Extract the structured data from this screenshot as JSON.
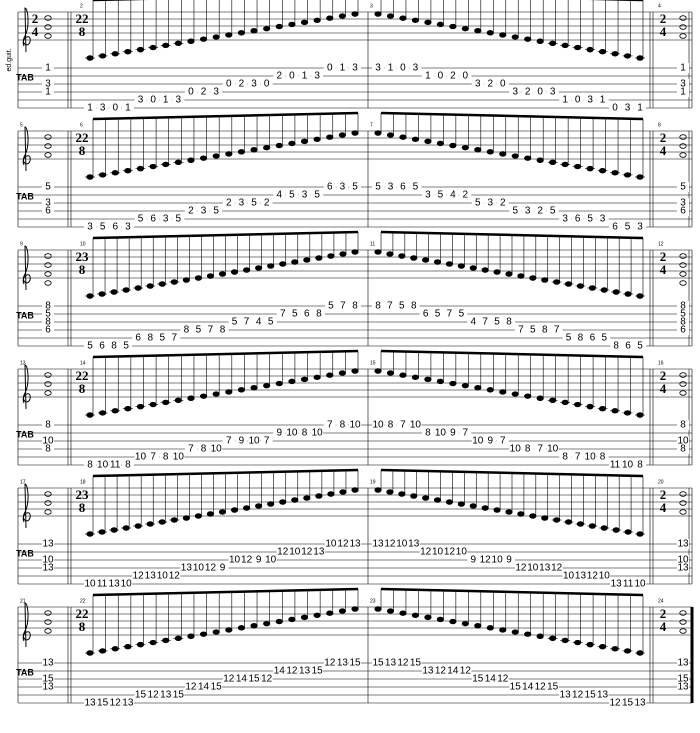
{
  "instrument": "ed.guit.",
  "tab_label": "TAB",
  "systems": [
    {
      "measures": [
        {
          "time": [
            2,
            4
          ],
          "frets": [
            1,
            3,
            1
          ]
        },
        {
          "number": 2,
          "time": [
            22,
            8
          ],
          "frets": [
            1,
            3,
            0,
            1,
            3,
            0,
            1,
            3,
            0,
            2,
            3,
            0,
            2,
            3,
            0,
            2,
            0,
            1,
            3,
            0,
            1,
            3
          ]
        },
        {
          "number": 3,
          "frets": [
            3,
            1,
            0,
            3,
            1,
            0,
            2,
            0,
            3,
            2,
            0,
            3,
            2,
            0,
            3,
            1,
            0,
            3,
            1,
            0,
            3,
            1
          ]
        },
        {
          "number": 4,
          "time": [
            2,
            4
          ],
          "frets": [
            1,
            3,
            1
          ]
        }
      ]
    },
    {
      "measures": [
        {
          "number": 5,
          "frets": [
            5,
            3,
            6
          ]
        },
        {
          "number": 6,
          "time": [
            22,
            8
          ],
          "frets": [
            3,
            5,
            6,
            3,
            5,
            6,
            3,
            5,
            2,
            3,
            5,
            2,
            3,
            5,
            2,
            4,
            5,
            3,
            5,
            6,
            3,
            5
          ]
        },
        {
          "number": 7,
          "frets": [
            5,
            3,
            6,
            5,
            3,
            5,
            4,
            2,
            5,
            3,
            2,
            5,
            3,
            2,
            5,
            3,
            6,
            5,
            3,
            6,
            5,
            3
          ]
        },
        {
          "number": 8,
          "time": [
            2,
            4
          ],
          "frets": [
            5,
            3,
            6
          ]
        }
      ]
    },
    {
      "measures": [
        {
          "number": 9,
          "frets": [
            8,
            5,
            8,
            6
          ]
        },
        {
          "number": 10,
          "time": [
            23,
            8
          ],
          "frets": [
            5,
            6,
            8,
            5,
            6,
            8,
            5,
            7,
            8,
            5,
            7,
            8,
            5,
            7,
            4,
            5,
            7,
            5,
            6,
            8,
            5,
            7,
            8
          ]
        },
        {
          "number": 11,
          "frets": [
            8,
            7,
            5,
            8,
            6,
            5,
            7,
            5,
            4,
            7,
            5,
            8,
            7,
            5,
            8,
            7,
            5,
            8,
            6,
            5,
            8,
            6,
            5
          ]
        },
        {
          "number": 12,
          "time": [
            2,
            4
          ],
          "frets": [
            8,
            5,
            8,
            6
          ]
        }
      ]
    },
    {
      "measures": [
        {
          "number": 13,
          "frets": [
            8,
            10,
            8
          ]
        },
        {
          "number": 14,
          "time": [
            22,
            8
          ],
          "frets": [
            8,
            10,
            11,
            8,
            10,
            7,
            8,
            10,
            7,
            8,
            10,
            7,
            9,
            10,
            7,
            9,
            10,
            8,
            10,
            7,
            8,
            10
          ]
        },
        {
          "number": 15,
          "frets": [
            10,
            8,
            7,
            10,
            8,
            10,
            9,
            7,
            10,
            9,
            7,
            10,
            8,
            7,
            10,
            8,
            7,
            10,
            8,
            11,
            10,
            8
          ]
        },
        {
          "number": 16,
          "time": [
            2,
            4
          ],
          "frets": [
            8,
            10,
            8
          ]
        }
      ]
    },
    {
      "measures": [
        {
          "number": 17,
          "frets": [
            13,
            10,
            13
          ]
        },
        {
          "number": 18,
          "time": [
            23,
            8
          ],
          "frets": [
            10,
            11,
            13,
            10,
            12,
            13,
            10,
            12,
            13,
            10,
            12,
            9,
            10,
            12,
            9,
            10,
            12,
            10,
            12,
            13,
            10,
            12,
            13
          ]
        },
        {
          "number": 19,
          "frets": [
            13,
            12,
            10,
            13,
            12,
            10,
            12,
            10,
            9,
            12,
            10,
            9,
            12,
            10,
            13,
            12,
            10,
            13,
            12,
            10,
            13,
            11,
            10
          ]
        },
        {
          "number": 20,
          "time": [
            2,
            4
          ],
          "frets": [
            13,
            10,
            13
          ]
        }
      ]
    },
    {
      "measures": [
        {
          "number": 21,
          "frets": [
            13,
            15,
            13
          ]
        },
        {
          "number": 22,
          "time": [
            22,
            8
          ],
          "frets": [
            13,
            15,
            12,
            13,
            15,
            12,
            13,
            15,
            12,
            14,
            15,
            12,
            14,
            15,
            12,
            14,
            12,
            13,
            15,
            12,
            13,
            15
          ]
        },
        {
          "number": 23,
          "frets": [
            15,
            13,
            12,
            15,
            13,
            12,
            14,
            12,
            15,
            14,
            12,
            15,
            14,
            12,
            15,
            13,
            12,
            15,
            13,
            12,
            15,
            13
          ]
        },
        {
          "number": 24,
          "time": [
            2,
            4
          ],
          "frets": [
            13,
            15,
            13
          ]
        }
      ]
    }
  ]
}
